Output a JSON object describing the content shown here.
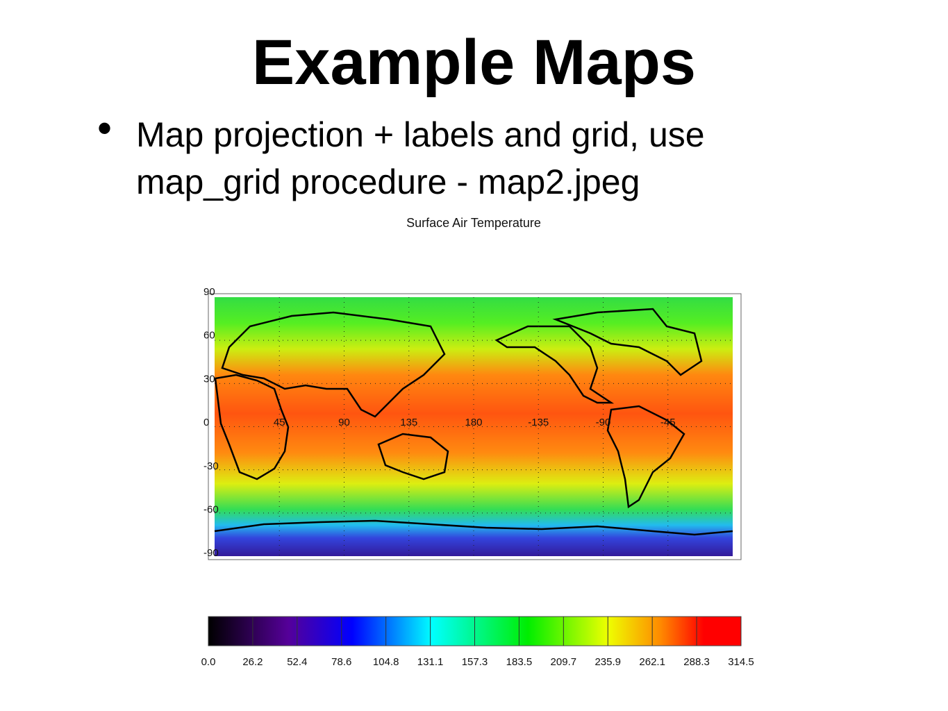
{
  "title": "Example Maps",
  "bullet": "Map projection + labels and grid, use map_grid procedure - map2.jpeg",
  "map": {
    "title": "Surface Air Temperature",
    "lat_labels": [
      "90",
      "60",
      "30",
      "0",
      "-30",
      "-60",
      "-90"
    ],
    "lon_labels": [
      "45",
      "90",
      "135",
      "180",
      "-135",
      "-90",
      "-45"
    ],
    "colorbar_labels": [
      "0.0",
      "26.2",
      "52.4",
      "78.6",
      "104.8",
      "131.1",
      "157.3",
      "183.5",
      "209.7",
      "235.9",
      "262.1",
      "288.3",
      "314.5"
    ]
  }
}
